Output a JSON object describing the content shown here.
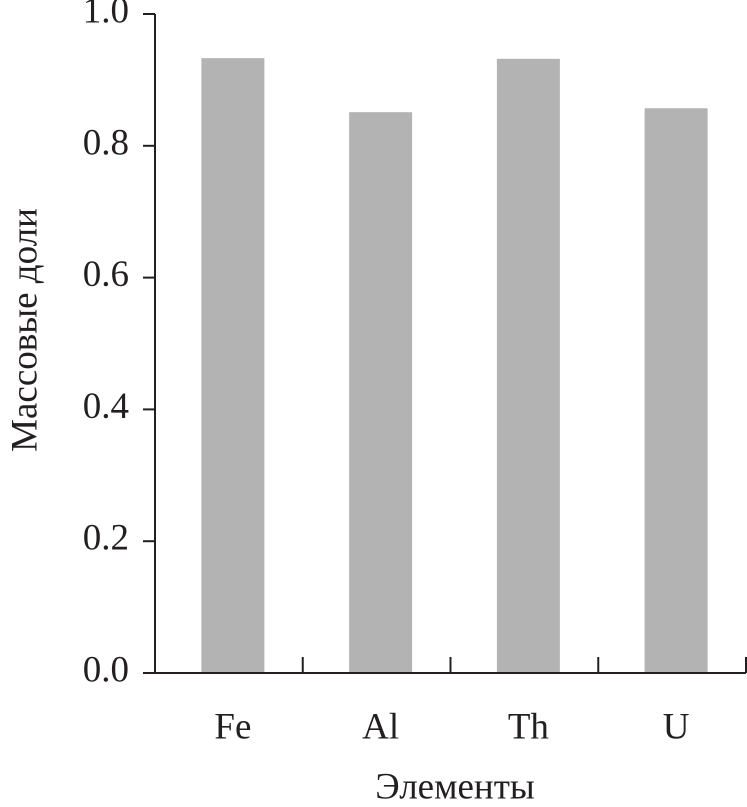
{
  "chart_data": {
    "type": "bar",
    "categories": [
      "Fe",
      "Al",
      "Th",
      "U"
    ],
    "values": [
      0.933,
      0.851,
      0.932,
      0.857
    ],
    "color": "#b3b3b3",
    "ylabel": "Массовые доли",
    "xlabel": "Элементы",
    "ylim": [
      0,
      1.0
    ],
    "yticks": [
      {
        "value": 0,
        "label": "0.0"
      },
      0.2,
      0.4,
      0.6,
      0.8,
      {
        "value": 1.0,
        "label": "1.0"
      }
    ],
    "grid": false
  }
}
